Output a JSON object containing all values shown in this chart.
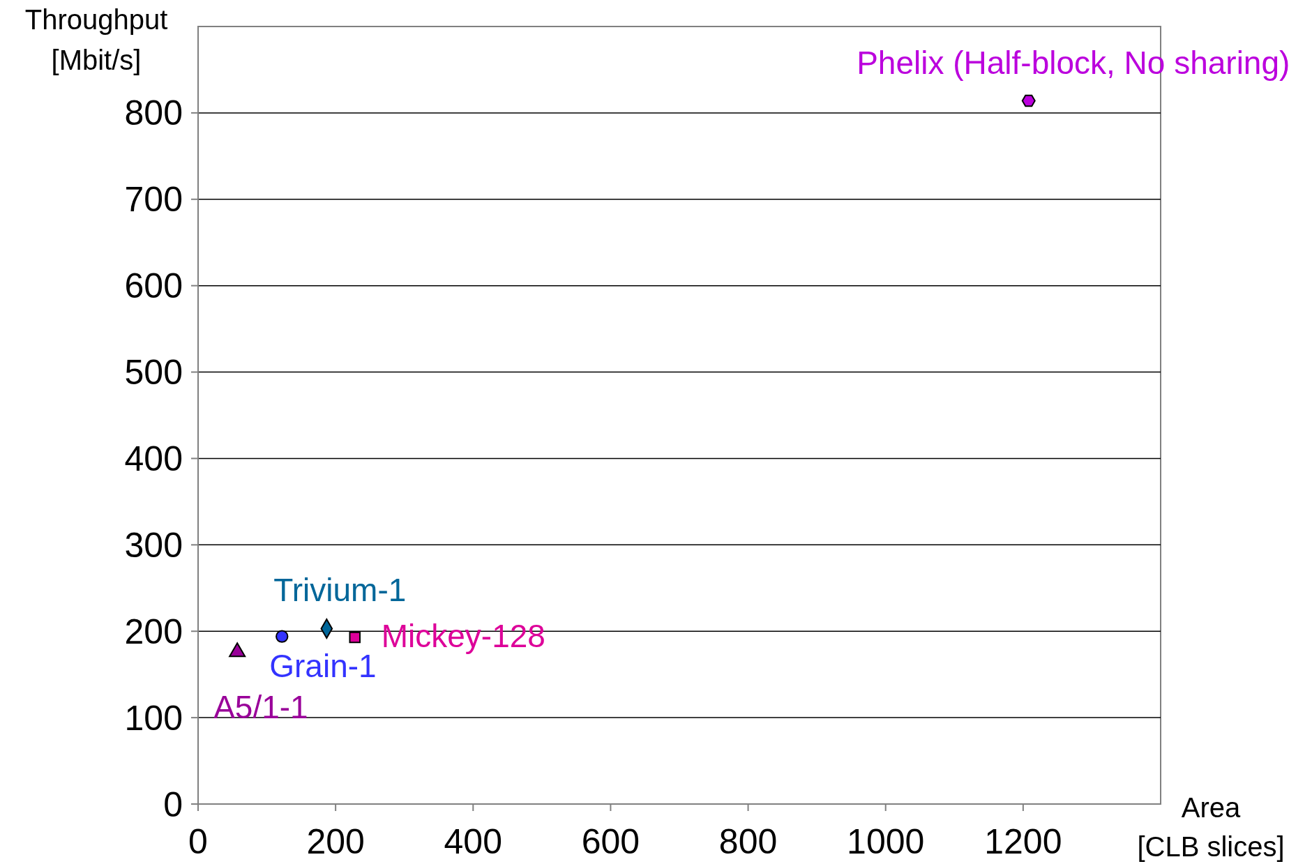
{
  "chart_data": {
    "type": "scatter",
    "xlabel": "Area\n[CLB slices]",
    "ylabel": "Throughput\n[Mbit/s]",
    "xlim": [
      0,
      1400
    ],
    "xticks": [
      0,
      200,
      400,
      600,
      800,
      1000,
      1200
    ],
    "ylim": [
      0,
      900
    ],
    "yticks": [
      0,
      100,
      200,
      300,
      400,
      500,
      600,
      700,
      800
    ],
    "grid": "y",
    "series": [
      {
        "name": "A5/1-1",
        "color": "#990099",
        "marker": "triangle",
        "x": [
          57
        ],
        "values": [
          176
        ]
      },
      {
        "name": "Grain-1",
        "color": "#3333ff",
        "marker": "circle",
        "x": [
          122
        ],
        "values": [
          194
        ]
      },
      {
        "name": "Trivium-1",
        "color": "#006699",
        "marker": "diamond",
        "x": [
          187
        ],
        "values": [
          203
        ]
      },
      {
        "name": "Mickey-128",
        "color": "#dd0099",
        "marker": "square",
        "x": [
          228
        ],
        "values": [
          193
        ]
      },
      {
        "name": "Phelix (Half-block, No sharing)",
        "color": "#bb00dd",
        "x": [
          1208
        ],
        "values": [
          814
        ]
      }
    ]
  }
}
